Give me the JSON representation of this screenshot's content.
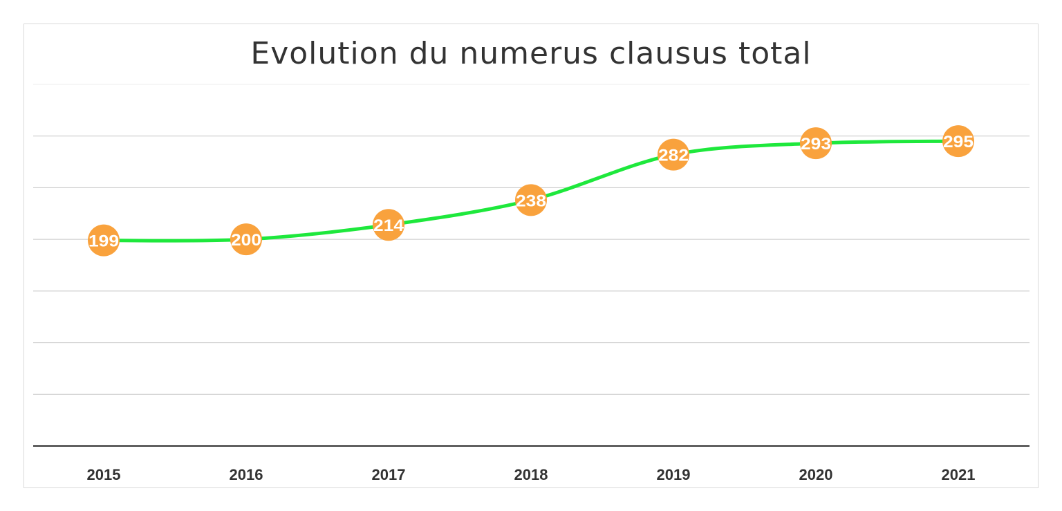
{
  "chart_data": {
    "type": "line",
    "title": "Evolution du numerus clausus total",
    "categories": [
      "2015",
      "2016",
      "2017",
      "2018",
      "2019",
      "2020",
      "2021"
    ],
    "values": [
      199,
      200,
      214,
      238,
      282,
      293,
      295
    ],
    "data_labels": [
      "199",
      "200",
      "214",
      "238",
      "282",
      "293",
      "295"
    ],
    "ylim": [
      0,
      350
    ],
    "y_gridline_step": 50,
    "grid": true,
    "y_tick_labels_shown": false,
    "legend": "none",
    "colors": {
      "line": "#1ee83c",
      "marker": "#f9a23d",
      "label": "#ffffff",
      "grid": "#c8c8c8",
      "axis": "#333333"
    }
  }
}
